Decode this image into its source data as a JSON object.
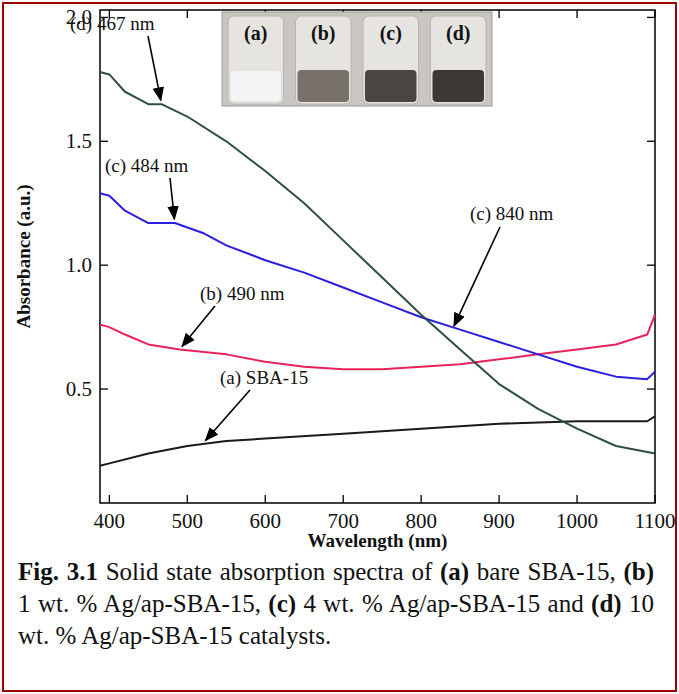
{
  "chart_data": {
    "type": "line",
    "x_label": "Wavelength (nm)",
    "y_label": "Absorbance (a.u.)",
    "xlim": [
      388,
      1100
    ],
    "ylim": [
      0.04,
      2.03
    ],
    "xticks": [
      400,
      500,
      600,
      700,
      800,
      900,
      1000,
      1100
    ],
    "yticks": [
      0.5,
      {
        "value": 1,
        "label": "1.0"
      },
      1.5,
      {
        "value": 2,
        "label": "2.0"
      }
    ],
    "grid": false,
    "series": [
      {
        "color": "#1a1a1a",
        "x": [
          388,
          400,
          450,
          500,
          550,
          600,
          700,
          800,
          900,
          1000,
          1050,
          1090,
          1100
        ],
        "values": [
          0.19,
          0.2,
          0.24,
          0.27,
          0.29,
          0.3,
          0.32,
          0.34,
          0.36,
          0.37,
          0.37,
          0.37,
          0.39
        ]
      },
      {
        "color": "#e8235a",
        "x": [
          388,
          400,
          420,
          450,
          490,
          550,
          600,
          650,
          700,
          750,
          800,
          850,
          900,
          950,
          1000,
          1050,
          1090,
          1100
        ],
        "values": [
          0.76,
          0.75,
          0.72,
          0.68,
          0.66,
          0.64,
          0.61,
          0.59,
          0.58,
          0.58,
          0.59,
          0.6,
          0.62,
          0.64,
          0.66,
          0.68,
          0.72,
          0.8
        ]
      },
      {
        "color": "#2a1ee0",
        "x": [
          388,
          400,
          420,
          450,
          484,
          520,
          550,
          600,
          650,
          700,
          750,
          800,
          850,
          900,
          950,
          1000,
          1050,
          1090,
          1100
        ],
        "values": [
          1.29,
          1.28,
          1.22,
          1.17,
          1.17,
          1.13,
          1.08,
          1.02,
          0.97,
          0.91,
          0.85,
          0.79,
          0.74,
          0.69,
          0.64,
          0.59,
          0.55,
          0.54,
          0.57
        ]
      },
      {
        "color": "#2f4f45",
        "x": [
          388,
          400,
          420,
          450,
          467,
          500,
          550,
          600,
          650,
          700,
          750,
          800,
          850,
          900,
          950,
          1000,
          1050,
          1100
        ],
        "values": [
          1.78,
          1.77,
          1.7,
          1.65,
          1.65,
          1.6,
          1.5,
          1.38,
          1.25,
          1.1,
          0.95,
          0.8,
          0.66,
          0.52,
          0.42,
          0.34,
          0.27,
          0.24
        ]
      }
    ],
    "annotations": [
      {
        "text": "(d) 467 nm",
        "x": 467,
        "y": 1.65
      },
      {
        "text": "(c) 484 nm",
        "x": 484,
        "y": 1.17
      },
      {
        "text": "(b) 490 nm",
        "x": 490,
        "y": 0.66
      },
      {
        "text": "(c) 840 nm",
        "x": 840,
        "y": 0.74
      },
      {
        "text": "(a) SBA-15",
        "x": 520,
        "y": 0.28
      }
    ],
    "inset_labels": [
      "(a)",
      "(b)",
      "(c)",
      "(d)"
    ],
    "caption": "Fig. 3.1 Solid state absorption spectra of (a) bare SBA-15, (b) 1 wt. % Ag/ap-SBA-15, (c) 4 wt. % Ag/ap-SBA-15 and (d) 10 wt. % Ag/ap-SBA-15 catalysts."
  }
}
